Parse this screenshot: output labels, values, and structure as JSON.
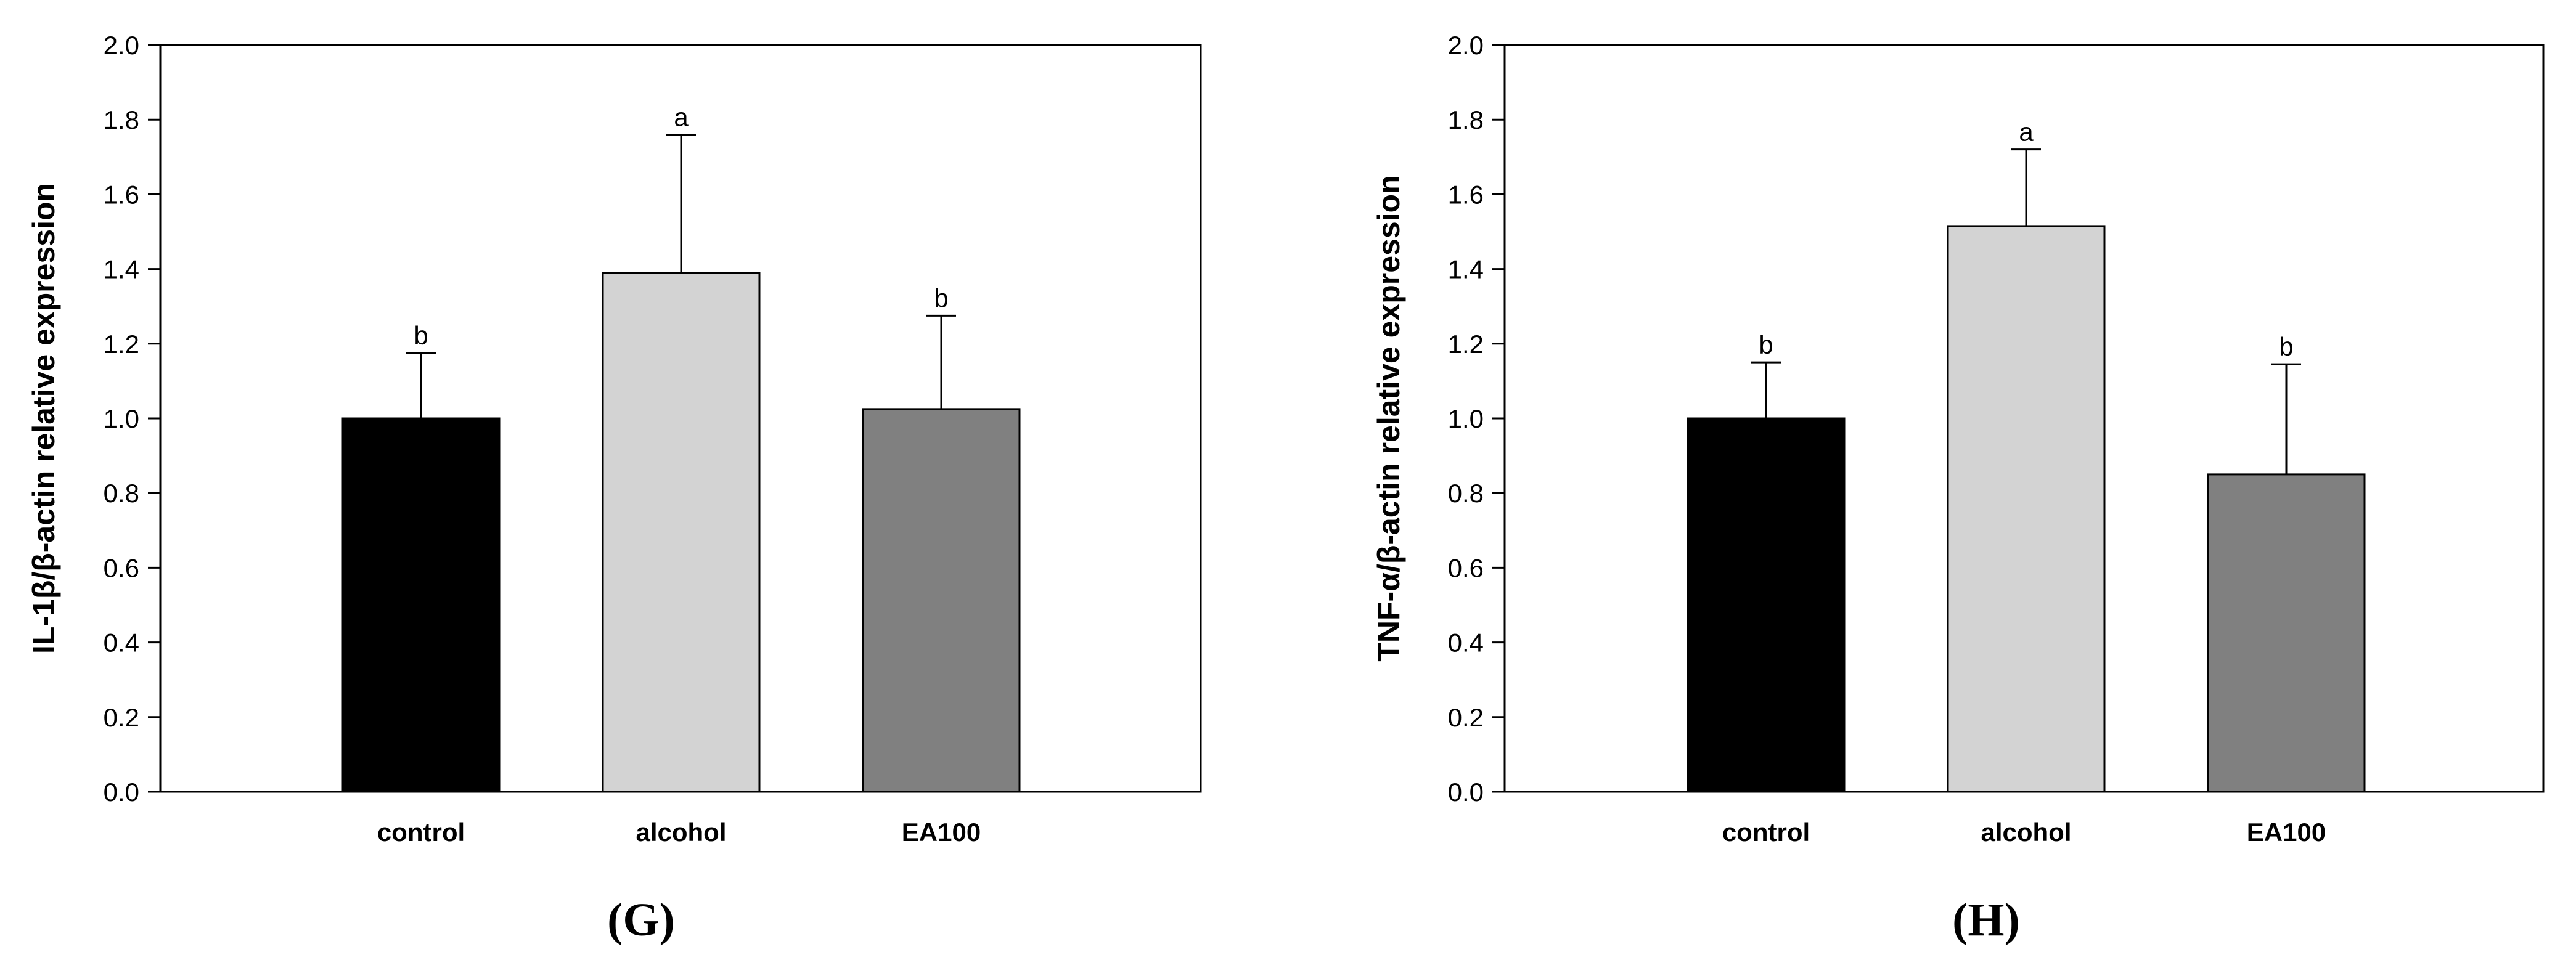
{
  "chart_data": [
    {
      "type": "bar",
      "panel_label": "G",
      "ylabel": "IL-1β/β-actin relative expression",
      "categories": [
        "control",
        "alcohol",
        "EA100"
      ],
      "values": [
        1.0,
        1.39,
        1.025
      ],
      "errors": [
        0.175,
        0.37,
        0.25
      ],
      "significance": [
        "b",
        "a",
        "b"
      ],
      "colors": [
        "#000000",
        "#d3d3d3",
        "#808080"
      ],
      "ylim": [
        0,
        2.0
      ],
      "yticks": [
        "0.0",
        "0.2",
        "0.4",
        "0.6",
        "0.8",
        "1.0",
        "1.2",
        "1.4",
        "1.6",
        "1.8",
        "2.0"
      ],
      "grid": false
    },
    {
      "type": "bar",
      "panel_label": "H",
      "ylabel": "TNF-α/β-actin relative expression",
      "categories": [
        "control",
        "alcohol",
        "EA100"
      ],
      "values": [
        1.0,
        1.515,
        0.85
      ],
      "errors": [
        0.15,
        0.205,
        0.295
      ],
      "significance": [
        "b",
        "a",
        "b"
      ],
      "colors": [
        "#000000",
        "#d3d3d3",
        "#808080"
      ],
      "ylim": [
        0,
        2.0
      ],
      "yticks": [
        "0.0",
        "0.2",
        "0.4",
        "0.6",
        "0.8",
        "1.0",
        "1.2",
        "1.4",
        "1.6",
        "1.8",
        "2.0"
      ],
      "grid": false
    }
  ]
}
